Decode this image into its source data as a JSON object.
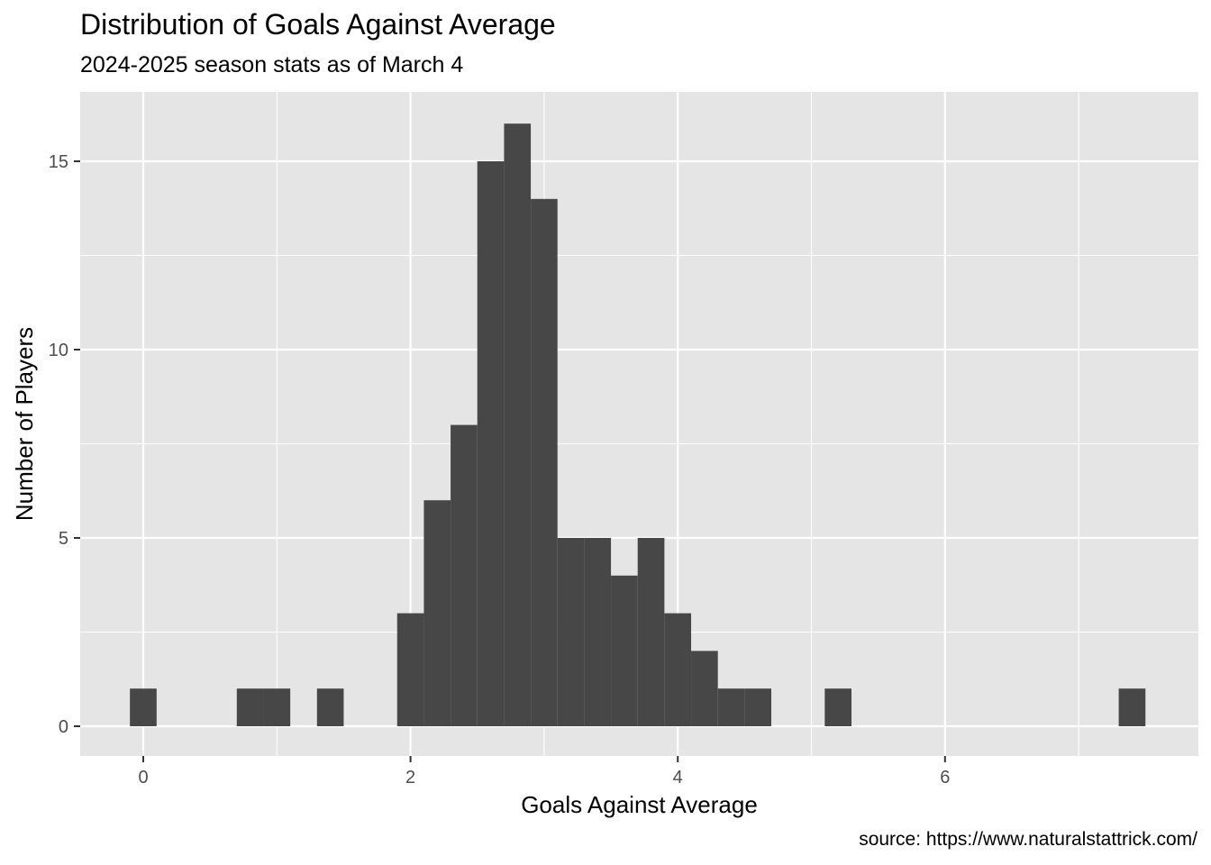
{
  "chart_data": {
    "type": "bar",
    "title": "Distribution of Goals Against Average",
    "subtitle": "2024-2025 season stats as of March 4",
    "caption": "source: https://www.naturalstattrick.com/",
    "xlabel": "Goals Against Average",
    "ylabel": "Number of Players",
    "xlim": [
      -0.47,
      7.85
    ],
    "ylim": [
      0,
      16.8
    ],
    "x_ticks": [
      0,
      2,
      4,
      6
    ],
    "y_ticks": [
      0,
      5,
      10,
      15
    ],
    "bin_width": 0.2,
    "bins": [
      {
        "x": 0.0,
        "count": 1
      },
      {
        "x": 0.8,
        "count": 1
      },
      {
        "x": 1.0,
        "count": 1
      },
      {
        "x": 1.4,
        "count": 1
      },
      {
        "x": 2.0,
        "count": 3
      },
      {
        "x": 2.2,
        "count": 6
      },
      {
        "x": 2.4,
        "count": 8
      },
      {
        "x": 2.6,
        "count": 15
      },
      {
        "x": 2.8,
        "count": 16
      },
      {
        "x": 3.0,
        "count": 14
      },
      {
        "x": 3.2,
        "count": 5
      },
      {
        "x": 3.4,
        "count": 5
      },
      {
        "x": 3.6,
        "count": 4
      },
      {
        "x": 3.8,
        "count": 5
      },
      {
        "x": 4.0,
        "count": 3
      },
      {
        "x": 4.2,
        "count": 2
      },
      {
        "x": 4.4,
        "count": 1
      },
      {
        "x": 4.6,
        "count": 1
      },
      {
        "x": 5.2,
        "count": 1
      },
      {
        "x": 7.4,
        "count": 1
      }
    ],
    "grid": true,
    "colors": {
      "panel_background": "#e5e5e5",
      "grid": "#ffffff",
      "bar_fill": "#474747",
      "tick_text": "#4d4d4d"
    }
  }
}
